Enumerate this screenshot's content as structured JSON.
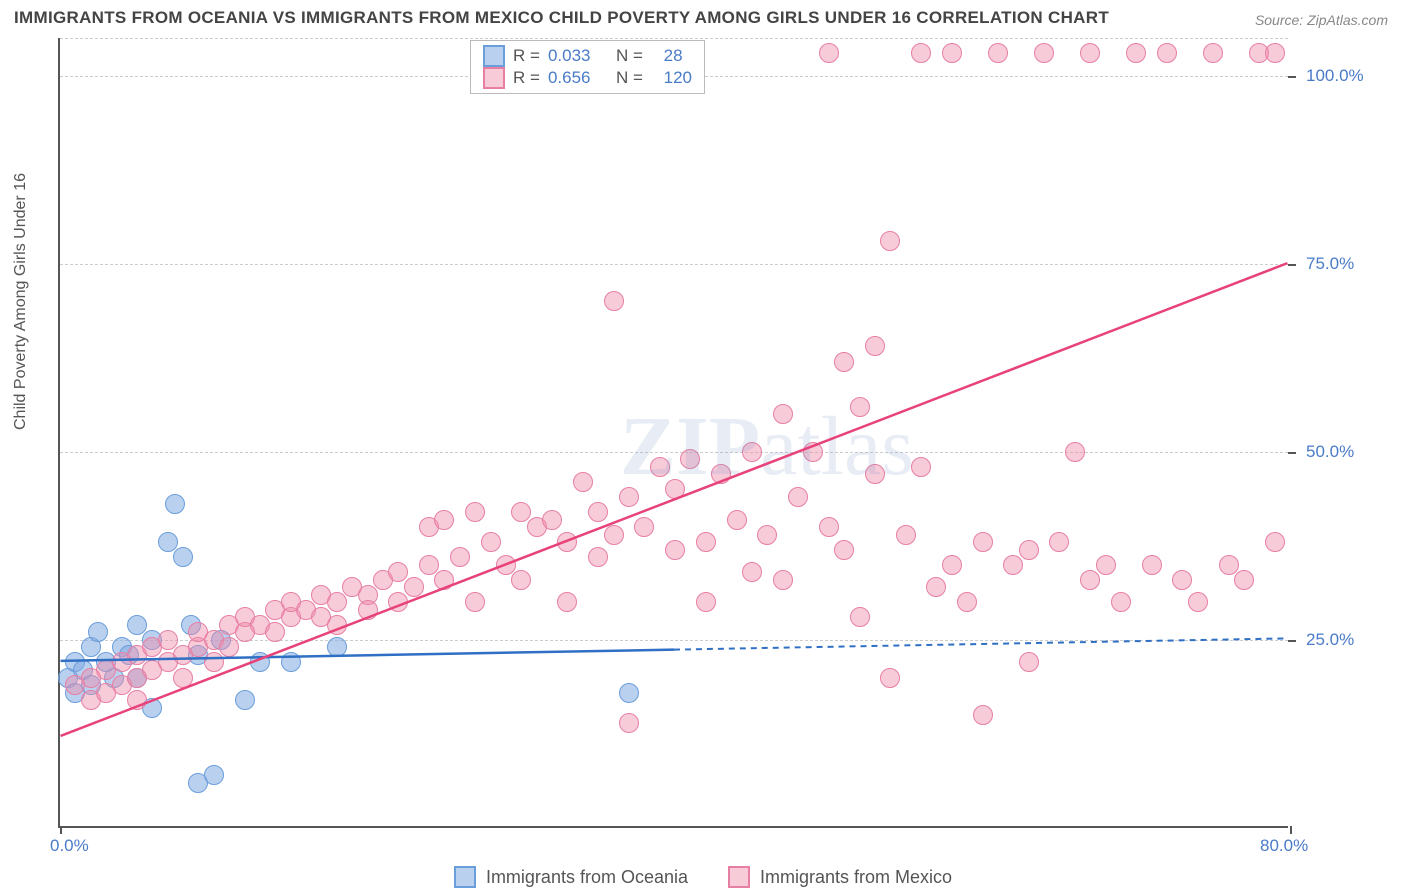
{
  "title": "IMMIGRANTS FROM OCEANIA VS IMMIGRANTS FROM MEXICO CHILD POVERTY AMONG GIRLS UNDER 16 CORRELATION CHART",
  "source_label": "Source:",
  "source_value": "ZipAtlas.com",
  "ylabel": "Child Poverty Among Girls Under 16",
  "watermark_bold": "ZIP",
  "watermark_rest": "atlas",
  "chart": {
    "type": "scatter",
    "background_color": "#ffffff",
    "grid_color": "#cccccc",
    "axis_color": "#555555",
    "xlim": [
      0,
      80
    ],
    "ylim": [
      0,
      105
    ],
    "xticks": [
      0,
      80
    ],
    "xtick_labels": [
      "0.0%",
      "80.0%"
    ],
    "yticks": [
      25,
      50,
      75,
      100
    ],
    "ytick_labels": [
      "25.0%",
      "50.0%",
      "75.0%",
      "100.0%"
    ],
    "marker_radius": 10,
    "series": [
      {
        "name": "Immigrants from Oceania",
        "fill": "rgba(130,170,225,0.55)",
        "stroke": "#6a9edb",
        "line_color": "#2f6fc4",
        "R": "0.033",
        "N": "28",
        "trend": {
          "x1": 0,
          "y1": 22,
          "x2": 40,
          "y2": 23.5,
          "dash_x2": 80,
          "dash_y2": 25
        },
        "points": [
          [
            0.5,
            20
          ],
          [
            1,
            18
          ],
          [
            1,
            22
          ],
          [
            1.5,
            21
          ],
          [
            2,
            19
          ],
          [
            2,
            24
          ],
          [
            2.5,
            26
          ],
          [
            3,
            22
          ],
          [
            3.5,
            20
          ],
          [
            4,
            24
          ],
          [
            4.5,
            23
          ],
          [
            5,
            27
          ],
          [
            5,
            20
          ],
          [
            6,
            25
          ],
          [
            6,
            16
          ],
          [
            7,
            38
          ],
          [
            7.5,
            43
          ],
          [
            8,
            36
          ],
          [
            8.5,
            27
          ],
          [
            9,
            23
          ],
          [
            9,
            6
          ],
          [
            10,
            7
          ],
          [
            10.5,
            25
          ],
          [
            12,
            17
          ],
          [
            13,
            22
          ],
          [
            15,
            22
          ],
          [
            18,
            24
          ],
          [
            37,
            18
          ]
        ]
      },
      {
        "name": "Immigrants from Mexico",
        "fill": "rgba(240,140,170,0.45)",
        "stroke": "#e77fa5",
        "line_color": "#e8427a",
        "R": "0.656",
        "N": "120",
        "trend": {
          "x1": 0,
          "y1": 12,
          "x2": 80,
          "y2": 75
        },
        "points": [
          [
            1,
            19
          ],
          [
            2,
            20
          ],
          [
            2,
            17
          ],
          [
            3,
            21
          ],
          [
            3,
            18
          ],
          [
            4,
            22
          ],
          [
            4,
            19
          ],
          [
            5,
            23
          ],
          [
            5,
            20
          ],
          [
            5,
            17
          ],
          [
            6,
            24
          ],
          [
            6,
            21
          ],
          [
            7,
            22
          ],
          [
            7,
            25
          ],
          [
            8,
            23
          ],
          [
            8,
            20
          ],
          [
            9,
            24
          ],
          [
            9,
            26
          ],
          [
            10,
            25
          ],
          [
            10,
            22
          ],
          [
            11,
            27
          ],
          [
            11,
            24
          ],
          [
            12,
            26
          ],
          [
            12,
            28
          ],
          [
            13,
            27
          ],
          [
            14,
            29
          ],
          [
            14,
            26
          ],
          [
            15,
            28
          ],
          [
            15,
            30
          ],
          [
            16,
            29
          ],
          [
            17,
            31
          ],
          [
            17,
            28
          ],
          [
            18,
            30
          ],
          [
            18,
            27
          ],
          [
            19,
            32
          ],
          [
            20,
            31
          ],
          [
            20,
            29
          ],
          [
            21,
            33
          ],
          [
            22,
            30
          ],
          [
            22,
            34
          ],
          [
            23,
            32
          ],
          [
            24,
            35
          ],
          [
            24,
            40
          ],
          [
            25,
            41
          ],
          [
            25,
            33
          ],
          [
            26,
            36
          ],
          [
            27,
            42
          ],
          [
            27,
            30
          ],
          [
            28,
            38
          ],
          [
            29,
            35
          ],
          [
            30,
            42
          ],
          [
            30,
            33
          ],
          [
            31,
            40
          ],
          [
            32,
            41
          ],
          [
            33,
            38
          ],
          [
            33,
            30
          ],
          [
            34,
            46
          ],
          [
            35,
            36
          ],
          [
            35,
            42
          ],
          [
            36,
            39
          ],
          [
            36,
            70
          ],
          [
            37,
            44
          ],
          [
            37,
            14
          ],
          [
            38,
            40
          ],
          [
            39,
            48
          ],
          [
            40,
            37
          ],
          [
            40,
            45
          ],
          [
            41,
            49
          ],
          [
            42,
            38
          ],
          [
            42,
            30
          ],
          [
            43,
            47
          ],
          [
            44,
            41
          ],
          [
            45,
            50
          ],
          [
            45,
            34
          ],
          [
            46,
            39
          ],
          [
            47,
            55
          ],
          [
            47,
            33
          ],
          [
            48,
            44
          ],
          [
            49,
            50
          ],
          [
            50,
            40
          ],
          [
            50,
            103
          ],
          [
            51,
            37
          ],
          [
            51,
            62
          ],
          [
            52,
            56
          ],
          [
            52,
            28
          ],
          [
            53,
            47
          ],
          [
            53,
            64
          ],
          [
            54,
            78
          ],
          [
            54,
            20
          ],
          [
            55,
            39
          ],
          [
            56,
            48
          ],
          [
            56,
            103
          ],
          [
            57,
            32
          ],
          [
            58,
            35
          ],
          [
            58,
            103
          ],
          [
            59,
            30
          ],
          [
            60,
            15
          ],
          [
            60,
            38
          ],
          [
            61,
            103
          ],
          [
            62,
            35
          ],
          [
            63,
            22
          ],
          [
            63,
            37
          ],
          [
            64,
            103
          ],
          [
            65,
            38
          ],
          [
            66,
            50
          ],
          [
            67,
            103
          ],
          [
            67,
            33
          ],
          [
            68,
            35
          ],
          [
            69,
            30
          ],
          [
            70,
            103
          ],
          [
            71,
            35
          ],
          [
            72,
            103
          ],
          [
            73,
            33
          ],
          [
            74,
            30
          ],
          [
            75,
            103
          ],
          [
            76,
            35
          ],
          [
            77,
            33
          ],
          [
            78,
            103
          ],
          [
            79,
            38
          ],
          [
            79,
            103
          ]
        ]
      }
    ]
  },
  "legend_top": {
    "r_label": "R =",
    "n_label": "N ="
  }
}
